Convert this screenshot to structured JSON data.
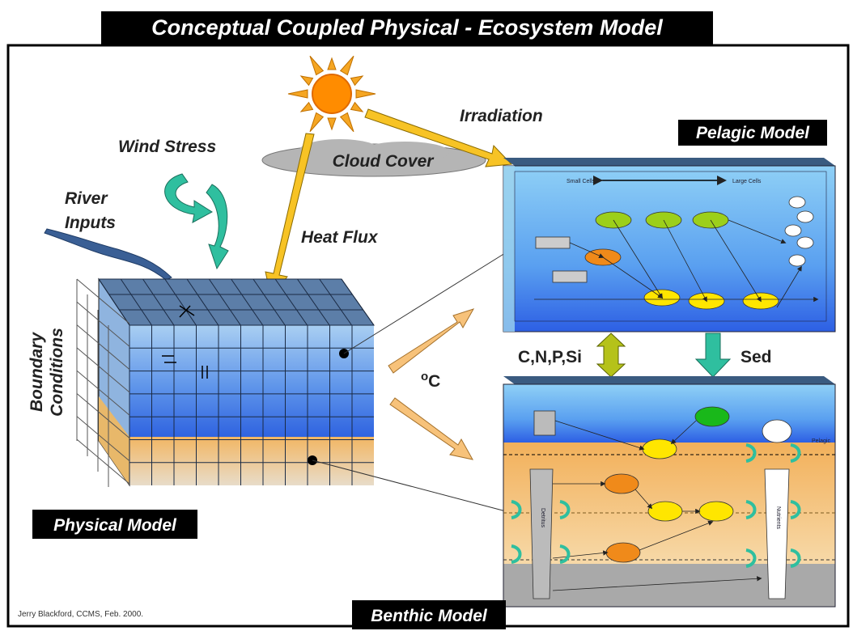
{
  "title": "Conceptual Coupled Physical - Ecosystem Model",
  "labels": {
    "irradiation": "Irradiation",
    "wind_stress": "Wind Stress",
    "cloud_cover": "Cloud Cover",
    "river_inputs": [
      "River",
      "Inputs"
    ],
    "heat_flux": "Heat Flux",
    "pelagic_model": "Pelagic Model",
    "physical_model": "Physical Model",
    "benthic_model": "Benthic Model",
    "boundary_conditions": [
      "Boundary",
      "Conditions"
    ],
    "exchange": "C,N,P,Si",
    "sed": "Sed",
    "temperature_degree": "o",
    "temperature_unit": "C"
  },
  "pelagic_labels": [
    "Small Cells",
    "Large Cells"
  ],
  "benthic_labels": [
    "Detritus",
    "Nutrients",
    "Pelagic"
  ],
  "credit": "Jerry Blackford, CCMS, Feb. 2000."
}
